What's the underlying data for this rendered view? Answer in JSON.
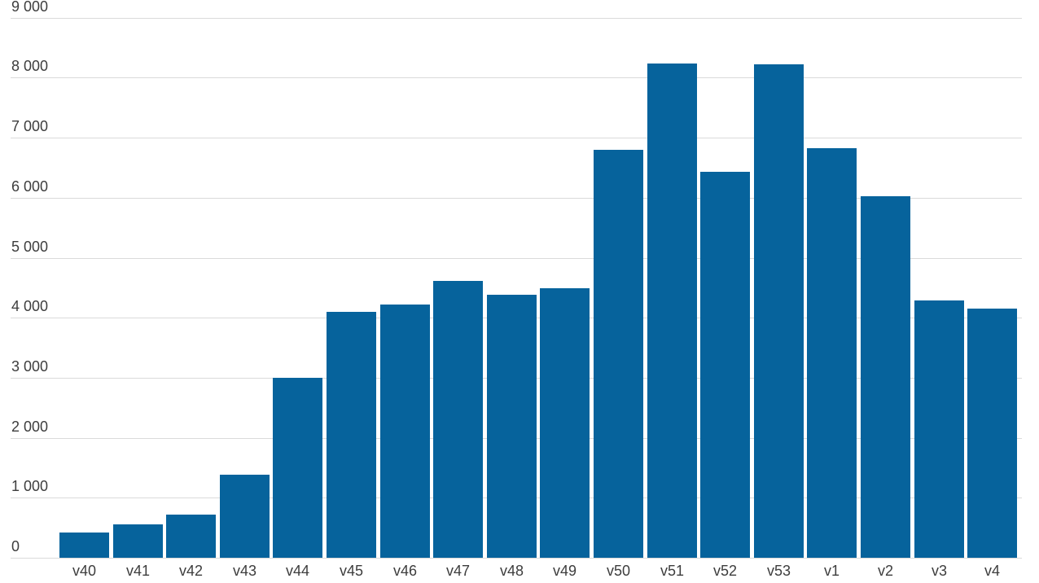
{
  "chart_data": {
    "type": "bar",
    "title": "",
    "xlabel": "",
    "ylabel": "",
    "categories": [
      "v40",
      "v41",
      "v42",
      "v43",
      "v44",
      "v45",
      "v46",
      "v47",
      "v48",
      "v49",
      "v50",
      "v51",
      "v52",
      "v53",
      "v1",
      "v2",
      "v3",
      "v4"
    ],
    "values": [
      420,
      550,
      720,
      1390,
      3000,
      4100,
      4220,
      4610,
      4380,
      4490,
      6800,
      8240,
      6430,
      8220,
      6830,
      6020,
      4290,
      4150
    ],
    "ylim": [
      0,
      9000
    ],
    "ytick_step": 1000,
    "ytick_labels": [
      "0",
      "1 000",
      "2 000",
      "3 000",
      "4 000",
      "5 000",
      "6 000",
      "7 000",
      "8 000",
      "9 000"
    ],
    "grid": true,
    "legend": "none",
    "colors": {
      "bar": "#06639C",
      "gridline": "#DADADA",
      "text": "#3D3D3D",
      "background": "#FFFFFF"
    }
  }
}
